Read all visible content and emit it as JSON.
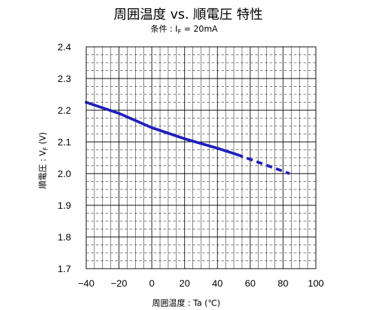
{
  "chart_data": {
    "type": "line",
    "title": "周囲温度 vs. 順電圧 特性",
    "subtitle": {
      "prefix": "条件 : I",
      "subscript": "F",
      "suffix": " = 20mA"
    },
    "xlabel": "周囲温度 : Ta (℃)",
    "ylabel": {
      "prefix": "順電圧 : V",
      "subscript": "F",
      "suffix": " (V)"
    },
    "xlim": [
      -40,
      100
    ],
    "ylim": [
      1.7,
      2.4
    ],
    "x_ticks": [
      -40,
      -20,
      0,
      20,
      40,
      60,
      80,
      100
    ],
    "x_tick_labels": [
      "−40",
      "−20",
      "0",
      "20",
      "40",
      "60",
      "80",
      "100"
    ],
    "y_ticks": [
      1.7,
      1.8,
      1.9,
      2.0,
      2.1,
      2.2,
      2.3,
      2.4
    ],
    "y_tick_labels": [
      "1.7",
      "1.8",
      "1.9",
      "2.0",
      "2.1",
      "2.2",
      "2.3",
      "2.4"
    ],
    "grid": true,
    "series": [
      {
        "style": "solid",
        "color": "#1f1fbf",
        "x": [
          -40,
          -20,
          0,
          20,
          40,
          52
        ],
        "y": [
          2.225,
          2.19,
          2.145,
          2.11,
          2.08,
          2.06
        ]
      },
      {
        "style": "dashed",
        "color": "#1f1fbf",
        "x": [
          52,
          84
        ],
        "y": [
          2.06,
          2.0
        ]
      }
    ]
  }
}
